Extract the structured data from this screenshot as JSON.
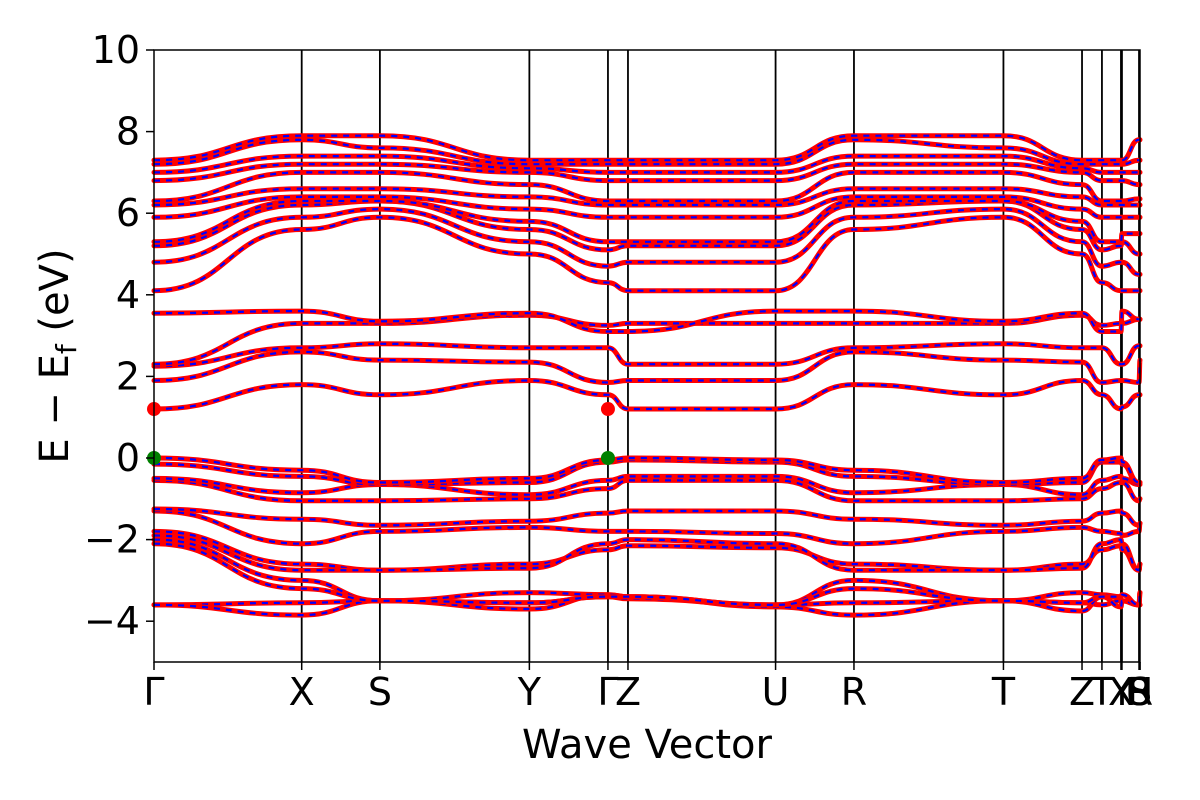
{
  "chart_data": {
    "type": "line",
    "xlabel": "Wave Vector",
    "ylabel_main": "E − E",
    "ylabel_sub": "f",
    "ylabel_unit": " (eV)",
    "ylim": [
      -5,
      10
    ],
    "yticks": [
      {
        "value": -4,
        "label": "−4"
      },
      {
        "value": -2,
        "label": "−2"
      },
      {
        "value": 0,
        "label": "0"
      },
      {
        "value": 2,
        "label": "2"
      },
      {
        "value": 4,
        "label": "4"
      },
      {
        "value": 6,
        "label": "6"
      },
      {
        "value": 8,
        "label": "8"
      },
      {
        "value": 10,
        "label": "10"
      }
    ],
    "xlim": [
      0,
      1
    ],
    "kpoints": [
      {
        "label": "Γ",
        "x": 0.0
      },
      {
        "label": "X",
        "x": 0.1498
      },
      {
        "label": "S",
        "x": 0.2291
      },
      {
        "label": "Y",
        "x": 0.3807
      },
      {
        "label": "Γ",
        "x": 0.4604
      },
      {
        "label": "Z",
        "x": 0.4807
      },
      {
        "label": "U",
        "x": 0.6304
      },
      {
        "label": "R",
        "x": 0.7099
      },
      {
        "label": "T",
        "x": 0.8615
      },
      {
        "label": "Z",
        "x": 0.9412
      },
      {
        "label": "T",
        "x": 0.9614
      },
      {
        "label": "X",
        "x": 0.9807
      },
      {
        "label": "Y",
        "x": 0.9817
      },
      {
        "label": "U",
        "x": 0.999
      },
      {
        "label": "R",
        "x": 1.0
      },
      {
        "label": "S",
        "x": 1.0
      }
    ],
    "band_colors": {
      "spin_up": "#ff0000",
      "spin_down": "#0000ff"
    },
    "markers": [
      {
        "type": "cbm",
        "color": "#ff0000",
        "x": 0.0,
        "y": 1.2
      },
      {
        "type": "cbm",
        "color": "#ff0000",
        "x": 0.4604,
        "y": 1.2
      },
      {
        "type": "vbm",
        "color": "#008000",
        "x": 0.0,
        "y": 0.0
      },
      {
        "type": "vbm",
        "color": "#008000",
        "x": 0.4604,
        "y": 0.0
      }
    ],
    "bands": [
      [
        -3.6,
        -3.55,
        -3.5,
        -3.55,
        -3.4,
        -3.45,
        -3.6,
        -3.55,
        -3.5,
        -3.55,
        -3.6,
        -3.5,
        -3.5,
        -3.6,
        -3.6,
        -3.6
      ],
      [
        -3.6,
        -3.85,
        -3.5,
        -3.7,
        -3.35,
        -3.4,
        -3.65,
        -3.85,
        -3.5,
        -3.75,
        -3.4,
        -3.65,
        -3.5,
        -3.6,
        -3.6,
        -3.6
      ],
      [
        -2.0,
        -3.0,
        -3.5,
        -3.3,
        -3.35,
        -3.4,
        -3.6,
        -3.0,
        -3.5,
        -3.3,
        -3.35,
        -3.4,
        -3.35,
        -3.6,
        -3.3,
        -3.7
      ],
      [
        -2.1,
        -3.2,
        -3.5,
        -3.55,
        -3.4,
        -3.4,
        -3.6,
        -3.2,
        -3.5,
        -3.55,
        -3.4,
        -3.4,
        -3.35,
        -3.6,
        -3.3,
        -3.7
      ],
      [
        -1.8,
        -2.6,
        -2.75,
        -2.6,
        -2.25,
        -2.15,
        -2.2,
        -2.6,
        -2.75,
        -2.6,
        -2.25,
        -2.15,
        -2.25,
        -2.75,
        -2.6,
        -2.6
      ],
      [
        -1.9,
        -2.75,
        -2.75,
        -2.7,
        -2.1,
        -2.0,
        -2.1,
        -2.75,
        -2.75,
        -2.7,
        -2.1,
        -2.0,
        -2.1,
        -2.75,
        -2.6,
        -2.6
      ],
      [
        -1.3,
        -2.1,
        -1.8,
        -1.7,
        -1.8,
        -1.8,
        -1.85,
        -2.1,
        -1.8,
        -1.7,
        -1.8,
        -1.85,
        -1.9,
        -1.8,
        -1.6,
        -1.6
      ],
      [
        -1.25,
        -1.5,
        -1.65,
        -1.55,
        -1.35,
        -1.3,
        -1.3,
        -1.5,
        -1.65,
        -1.55,
        -1.35,
        -1.3,
        -1.35,
        -1.65,
        -1.6,
        -1.6
      ],
      [
        -0.55,
        -1.05,
        -1.05,
        -1.0,
        -0.75,
        -0.55,
        -0.55,
        -1.05,
        -1.05,
        -1.0,
        -0.75,
        -0.6,
        -0.6,
        -1.05,
        -1.0,
        -1.0
      ],
      [
        -0.5,
        -0.85,
        -0.65,
        -0.9,
        -0.55,
        -0.45,
        -0.45,
        -0.85,
        -0.65,
        -0.9,
        -0.55,
        -0.45,
        -0.5,
        -0.65,
        -0.65,
        -0.65
      ],
      [
        -0.15,
        -0.45,
        -0.65,
        -0.6,
        -0.1,
        -0.05,
        -0.1,
        -0.45,
        -0.65,
        -0.6,
        -0.1,
        -0.1,
        -0.15,
        -0.65,
        -0.6,
        -0.6
      ],
      [
        0.0,
        -0.3,
        -0.6,
        -0.5,
        -0.05,
        0.0,
        -0.05,
        -0.3,
        -0.6,
        -0.5,
        -0.05,
        0.0,
        -0.1,
        -0.6,
        -0.6,
        -0.6
      ],
      [
        1.2,
        1.8,
        1.55,
        1.9,
        1.55,
        1.2,
        1.2,
        1.8,
        1.55,
        1.9,
        1.55,
        1.2,
        1.25,
        1.55,
        1.55,
        1.5
      ],
      [
        1.9,
        2.6,
        2.4,
        2.35,
        1.85,
        1.9,
        1.9,
        2.6,
        2.4,
        2.35,
        1.85,
        1.9,
        1.9,
        1.85,
        2.4,
        2.4
      ],
      [
        2.25,
        2.7,
        2.8,
        2.7,
        2.7,
        2.3,
        2.3,
        2.7,
        2.8,
        2.7,
        2.7,
        2.3,
        2.3,
        2.75,
        2.75,
        2.75
      ],
      [
        2.3,
        3.3,
        3.3,
        3.5,
        3.25,
        3.3,
        3.3,
        3.3,
        3.3,
        3.5,
        3.25,
        3.3,
        3.3,
        3.4,
        3.4,
        3.35
      ],
      [
        3.55,
        3.6,
        3.35,
        3.55,
        3.1,
        3.1,
        3.6,
        3.6,
        3.35,
        3.55,
        3.1,
        3.1,
        3.6,
        3.4,
        3.4,
        3.35
      ],
      [
        4.1,
        5.6,
        5.9,
        5.0,
        4.3,
        4.1,
        4.1,
        5.6,
        5.9,
        5.0,
        4.3,
        4.1,
        4.1,
        4.1,
        4.1,
        4.1
      ],
      [
        4.8,
        5.9,
        6.1,
        5.3,
        4.7,
        4.8,
        4.8,
        5.9,
        6.1,
        5.3,
        4.7,
        4.8,
        4.8,
        4.5,
        4.5,
        4.5
      ],
      [
        5.2,
        6.2,
        6.3,
        5.6,
        5.1,
        5.2,
        5.2,
        6.2,
        6.3,
        5.6,
        5.1,
        5.2,
        5.3,
        5.0,
        5.0,
        5.0
      ],
      [
        5.3,
        6.3,
        6.3,
        5.8,
        5.3,
        5.3,
        5.3,
        6.3,
        6.3,
        5.8,
        5.3,
        5.3,
        5.5,
        5.5,
        5.5,
        5.5
      ],
      [
        5.9,
        6.4,
        6.4,
        6.1,
        5.9,
        5.9,
        5.9,
        6.4,
        6.4,
        6.1,
        5.9,
        5.9,
        5.9,
        5.9,
        5.9,
        5.9
      ],
      [
        6.2,
        6.6,
        6.6,
        6.4,
        6.2,
        6.2,
        6.2,
        6.6,
        6.6,
        6.4,
        6.2,
        6.2,
        6.2,
        6.2,
        6.2,
        6.2
      ],
      [
        6.3,
        7.0,
        7.0,
        6.7,
        6.3,
        6.3,
        6.3,
        7.0,
        7.0,
        6.7,
        6.3,
        6.3,
        6.3,
        6.35,
        6.35,
        6.35
      ],
      [
        6.8,
        7.2,
        7.2,
        7.0,
        6.8,
        6.8,
        6.8,
        7.2,
        7.2,
        7.0,
        6.8,
        6.8,
        6.8,
        6.7,
        6.7,
        6.7
      ],
      [
        7.0,
        7.4,
        7.4,
        7.1,
        7.0,
        7.0,
        7.0,
        7.4,
        7.4,
        7.1,
        7.0,
        7.0,
        7.0,
        7.0,
        7.0,
        7.0
      ],
      [
        7.2,
        7.8,
        7.6,
        7.2,
        7.2,
        7.2,
        7.2,
        7.8,
        7.6,
        7.2,
        7.2,
        7.2,
        7.2,
        7.3,
        7.3,
        7.3
      ],
      [
        7.3,
        7.9,
        7.9,
        7.3,
        7.3,
        7.3,
        7.3,
        7.9,
        7.9,
        7.3,
        7.3,
        7.3,
        7.3,
        7.8,
        7.8,
        7.8
      ]
    ]
  }
}
